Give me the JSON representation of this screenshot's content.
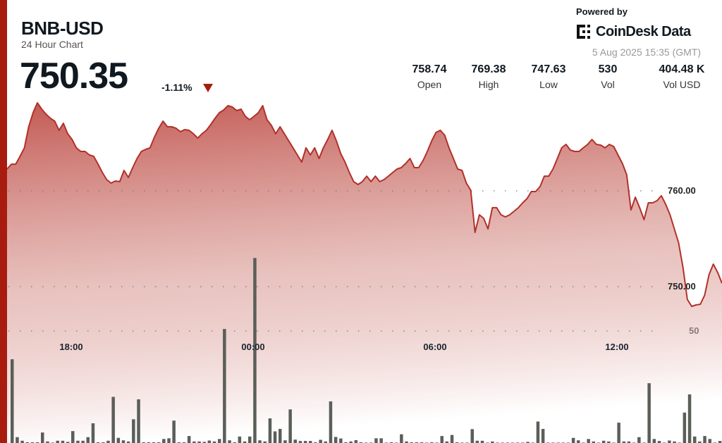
{
  "header": {
    "symbol": "BNB-USD",
    "subtitle": "24 Hour Chart",
    "price": "750.35",
    "change": "-1.11%",
    "change_direction": "down",
    "powered_by": "Powered by",
    "brand": "CoinDesk Data",
    "timestamp": "5 Aug 2025 15:35 (GMT)"
  },
  "stats": [
    {
      "value": "758.74",
      "label": "Open"
    },
    {
      "value": "769.38",
      "label": "High"
    },
    {
      "value": "747.63",
      "label": "Low"
    },
    {
      "value": "530",
      "label": "Vol"
    },
    {
      "value": "404.48 K",
      "label": "Vol USD"
    }
  ],
  "colors": {
    "accent": "#a81c10",
    "line": "#b3302a",
    "fill_top": "#c0504a",
    "volume_bar": "#5a5f58"
  },
  "chart_data": {
    "type": "area",
    "grid": true,
    "x_ticks": [
      "18:00",
      "00:00",
      "06:00",
      "12:00"
    ],
    "y_ticks": [
      "760.00",
      "750.00"
    ],
    "volume_ticks": [
      "50"
    ],
    "price_series": [
      762.28,
      762.79,
      762.79,
      763.6,
      764.49,
      766.69,
      768.16,
      769.19,
      768.53,
      768.01,
      767.57,
      767.28,
      766.32,
      767.06,
      765.96,
      765.37,
      764.49,
      764.12,
      764.12,
      763.75,
      763.6,
      762.79,
      761.91,
      761.18,
      760.81,
      761.03,
      760.96,
      762.13,
      761.4,
      762.43,
      763.38,
      764.12,
      764.34,
      764.49,
      765.59,
      766.54,
      767.28,
      766.69,
      766.69,
      766.54,
      766.18,
      766.4,
      766.32,
      765.96,
      765.51,
      765.96,
      766.32,
      766.91,
      767.57,
      768.16,
      768.45,
      768.9,
      768.75,
      768.38,
      768.53,
      767.79,
      767.43,
      767.79,
      768.16,
      768.9,
      767.43,
      766.84,
      765.96,
      766.69,
      765.96,
      765.22,
      764.49,
      763.75,
      763.01,
      764.49,
      763.75,
      764.49,
      763.38,
      764.49,
      765.37,
      766.32,
      765.22,
      763.9,
      763.01,
      761.91,
      760.96,
      760.66,
      760.96,
      761.54,
      760.96,
      761.54,
      760.96,
      761.18,
      761.54,
      761.91,
      762.28,
      762.43,
      762.87,
      763.38,
      762.43,
      762.43,
      763.16,
      764.12,
      765.22,
      766.1,
      766.32,
      765.81,
      764.49,
      763.38,
      762.28,
      762.13,
      760.81,
      760.07,
      755.66,
      757.5,
      757.13,
      756.03,
      758.24,
      758.24,
      757.5,
      757.28,
      757.5,
      757.87,
      758.24,
      758.75,
      759.19,
      759.93,
      759.93,
      760.44,
      761.54,
      761.54,
      762.28,
      763.38,
      764.49,
      764.85,
      764.26,
      764.12,
      764.12,
      764.49,
      764.85,
      765.37,
      764.85,
      764.78,
      764.49,
      764.85,
      764.63,
      763.75,
      762.87,
      761.69,
      758.01,
      759.34,
      758.24,
      756.99,
      758.75,
      758.75,
      758.97,
      759.49,
      758.6,
      757.5,
      756.03,
      754.56,
      751.99,
      748.68,
      747.94,
      748.09,
      748.16,
      749.1,
      751.25,
      752.35,
      751.47,
      750.35
    ],
    "volume_series": [
      37.4,
      2.6,
      1.0,
      0.3,
      0.3,
      0.3,
      4.7,
      0.7,
      0.2,
      1.0,
      1.0,
      0.5,
      5.3,
      1.0,
      1.0,
      2.6,
      8.8,
      0.3,
      0.3,
      1.0,
      20.6,
      2.3,
      1.2,
      0.7,
      10.6,
      19.5,
      0.3,
      0.3,
      0.3,
      0.3,
      1.8,
      2.1,
      10.0,
      0.3,
      0.3,
      3.1,
      0.7,
      0.7,
      0.5,
      1.1,
      0.7,
      1.8,
      50.9,
      1.2,
      0.3,
      2.9,
      0.7,
      2.9,
      82.6,
      1.2,
      0.7,
      11.0,
      5.2,
      6.3,
      1.2,
      15.0,
      1.5,
      0.9,
      0.9,
      0.9,
      0.3,
      1.4,
      0.7,
      18.6,
      2.7,
      2.0,
      0.3,
      0.7,
      1.3,
      0.3,
      0.2,
      0.2,
      2.1,
      2.1,
      0.2,
      0.3,
      0.2,
      3.9,
      0.7,
      0.3,
      0.3,
      0.3,
      0.2,
      0.3,
      0.2,
      3.1,
      0.7,
      3.6,
      0.3,
      0.2,
      0.2,
      6.2,
      1.0,
      1.0,
      0.2,
      0.7,
      0.2,
      0.2,
      0.2,
      0.2,
      0.2,
      0.2,
      0.5,
      0.2,
      9.6,
      6.3,
      0.2,
      0.2,
      0.2,
      0.2,
      0.2,
      2.3,
      1.2,
      0.2,
      1.8,
      0.7,
      0.2,
      1.0,
      0.7,
      0.2,
      9.1,
      0.7,
      0.7,
      0.2,
      2.6,
      0.2,
      26.7,
      1.8,
      0.9,
      0.2,
      1.1,
      0.7,
      0.2,
      13.6,
      21.7,
      2.9,
      0.7,
      3.1,
      1.8,
      0.2,
      0.9,
      12.8
    ]
  }
}
